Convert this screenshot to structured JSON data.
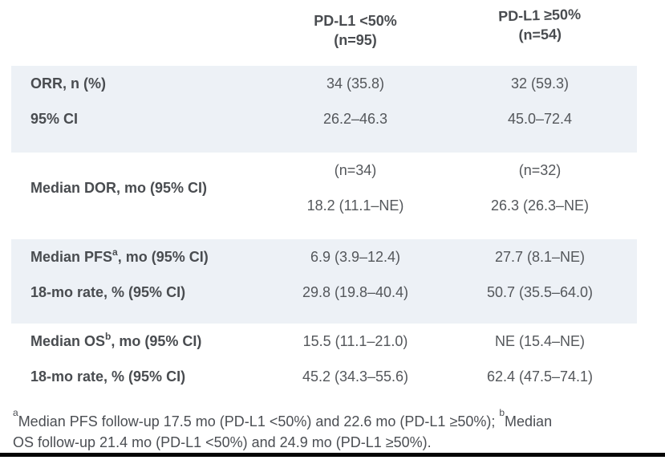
{
  "colors": {
    "row_shade": "#edf1f6",
    "header_text": "#494c50",
    "value_text": "#54575b",
    "bottom_rule": "#040404"
  },
  "table": {
    "columns": [
      {
        "line1": "PD-L1 <50%",
        "line2": "(n=95)"
      },
      {
        "line1": "PD-L1 ≥50%",
        "line2": "(n=54)"
      }
    ],
    "sections": [
      {
        "rows": [
          {
            "label": "ORR, n (%)",
            "values": [
              "34 (35.8)",
              "32 (59.3)"
            ]
          },
          {
            "label": "95% CI",
            "values": [
              "26.2–46.3",
              "45.0–72.4"
            ]
          }
        ]
      },
      {
        "group_label": "Median DOR, mo (95% CI)",
        "rows": [
          {
            "values": [
              "(n=34)",
              "(n=32)"
            ]
          },
          {
            "values": [
              "18.2 (11.1–NE)",
              "26.3 (26.3–NE)"
            ]
          }
        ]
      },
      {
        "rows": [
          {
            "label_pre": "Median PFS",
            "label_sup": "a",
            "label_post": ", mo (95% CI)",
            "values": [
              "6.9 (3.9–12.4)",
              "27.7 (8.1–NE)"
            ]
          },
          {
            "label": "18-mo rate, % (95% CI)",
            "values": [
              "29.8 (19.8–40.4)",
              "50.7 (35.5–64.0)"
            ]
          }
        ]
      },
      {
        "rows": [
          {
            "label_pre": "Median OS",
            "label_sup": "b",
            "label_post": ", mo (95% CI)",
            "values": [
              "15.5 (11.1–21.0)",
              "NE (15.4–NE)"
            ]
          },
          {
            "label": "18-mo rate, % (95% CI)",
            "values": [
              "45.2 (34.3–55.6)",
              "62.4 (47.5–74.1)"
            ]
          }
        ]
      }
    ],
    "footnote": {
      "sup_a": "a",
      "part1": "Median PFS follow-up 17.5 mo (PD-L1 <50%) and 22.6 mo (PD-L1 ≥50%); ",
      "sup_b": "b",
      "part2": "Median",
      "line2": "OS follow-up 21.4 mo (PD-L1 <50%) and 24.9 mo (PD-L1 ≥50%)."
    }
  }
}
